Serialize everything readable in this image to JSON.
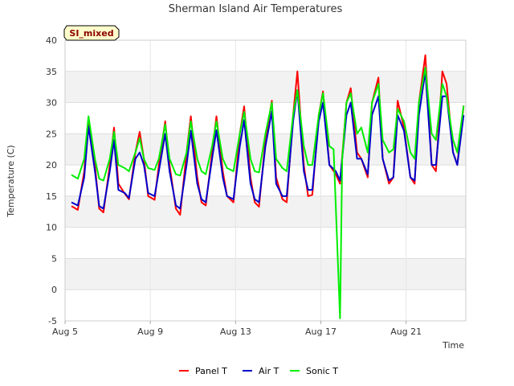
{
  "chart_data": {
    "type": "line",
    "title": "Sherman Island Air Temperatures",
    "xlabel": "Time",
    "ylabel": "Temperature (C)",
    "badge": "SI_mixed",
    "xlim": [
      5,
      23.8
    ],
    "ylim": [
      -5,
      40
    ],
    "y_ticks": [
      -5,
      0,
      5,
      10,
      15,
      20,
      25,
      30,
      35,
      40
    ],
    "x_ticks": [
      {
        "value": 5,
        "label": "Aug 5"
      },
      {
        "value": 9,
        "label": "Aug 9"
      },
      {
        "value": 13,
        "label": "Aug 13"
      },
      {
        "value": 17,
        "label": "Aug 17"
      },
      {
        "value": 21,
        "label": "Aug 21"
      }
    ],
    "grid": true,
    "legend_position": "bottom-center",
    "series": [
      {
        "name": "Panel T",
        "color": "#ff0000",
        "points": [
          [
            5.3,
            13.4
          ],
          [
            5.6,
            12.8
          ],
          [
            5.9,
            19
          ],
          [
            6.1,
            27.6
          ],
          [
            6.4,
            20
          ],
          [
            6.6,
            13
          ],
          [
            6.8,
            12.4
          ],
          [
            7.1,
            20
          ],
          [
            7.3,
            26
          ],
          [
            7.5,
            17
          ],
          [
            7.8,
            15.4
          ],
          [
            8,
            14.5
          ],
          [
            8.3,
            22
          ],
          [
            8.5,
            25.3
          ],
          [
            8.7,
            21
          ],
          [
            8.9,
            15
          ],
          [
            9.2,
            14.4
          ],
          [
            9.4,
            20
          ],
          [
            9.7,
            27
          ],
          [
            9.9,
            20
          ],
          [
            10.2,
            13
          ],
          [
            10.4,
            12
          ],
          [
            10.7,
            22
          ],
          [
            10.9,
            27.8
          ],
          [
            11.2,
            18
          ],
          [
            11.4,
            14
          ],
          [
            11.6,
            13.5
          ],
          [
            11.9,
            22
          ],
          [
            12.1,
            27.8
          ],
          [
            12.4,
            19
          ],
          [
            12.6,
            15
          ],
          [
            12.9,
            14
          ],
          [
            13.2,
            25
          ],
          [
            13.4,
            29.4
          ],
          [
            13.7,
            18
          ],
          [
            13.9,
            14
          ],
          [
            14.1,
            13.3
          ],
          [
            14.4,
            24
          ],
          [
            14.7,
            30.3
          ],
          [
            14.9,
            18
          ],
          [
            15.2,
            14.5
          ],
          [
            15.4,
            14
          ],
          [
            15.7,
            28
          ],
          [
            15.9,
            35
          ],
          [
            16.2,
            20
          ],
          [
            16.4,
            15
          ],
          [
            16.6,
            15.2
          ],
          [
            16.9,
            28
          ],
          [
            17.1,
            31.8
          ],
          [
            17.4,
            20
          ],
          [
            17.7,
            18.5
          ],
          [
            17.9,
            17
          ],
          [
            18.2,
            30
          ],
          [
            18.4,
            32.3
          ],
          [
            18.7,
            22
          ],
          [
            18.9,
            21
          ],
          [
            19.2,
            18
          ],
          [
            19.4,
            30
          ],
          [
            19.7,
            34
          ],
          [
            19.9,
            21
          ],
          [
            20.2,
            17
          ],
          [
            20.4,
            18
          ],
          [
            20.6,
            30.3
          ],
          [
            20.9,
            26
          ],
          [
            21.2,
            18
          ],
          [
            21.4,
            17
          ],
          [
            21.6,
            30
          ],
          [
            21.9,
            37.6
          ],
          [
            22.2,
            20
          ],
          [
            22.4,
            19
          ],
          [
            22.7,
            35
          ],
          [
            22.9,
            33
          ],
          [
            23.2,
            22
          ],
          [
            23.4,
            20
          ],
          [
            23.7,
            29.5
          ]
        ]
      },
      {
        "name": "Air T",
        "color": "#0000cc",
        "points": [
          [
            5.3,
            14
          ],
          [
            5.6,
            13.5
          ],
          [
            5.9,
            18
          ],
          [
            6.1,
            26.2
          ],
          [
            6.4,
            19
          ],
          [
            6.6,
            13.4
          ],
          [
            6.8,
            13
          ],
          [
            7.1,
            19
          ],
          [
            7.3,
            24
          ],
          [
            7.5,
            16
          ],
          [
            7.8,
            15.5
          ],
          [
            8,
            14.7
          ],
          [
            8.3,
            21
          ],
          [
            8.5,
            22
          ],
          [
            8.7,
            20
          ],
          [
            8.9,
            15.5
          ],
          [
            9.2,
            15
          ],
          [
            9.4,
            19
          ],
          [
            9.7,
            25
          ],
          [
            9.9,
            19
          ],
          [
            10.2,
            13.5
          ],
          [
            10.4,
            13
          ],
          [
            10.7,
            20
          ],
          [
            10.9,
            25.5
          ],
          [
            11.2,
            17
          ],
          [
            11.4,
            14.5
          ],
          [
            11.6,
            14
          ],
          [
            11.9,
            21
          ],
          [
            12.1,
            25.6
          ],
          [
            12.4,
            18
          ],
          [
            12.6,
            15
          ],
          [
            12.9,
            14.5
          ],
          [
            13.2,
            23
          ],
          [
            13.4,
            27.2
          ],
          [
            13.7,
            17
          ],
          [
            13.9,
            14.5
          ],
          [
            14.1,
            14
          ],
          [
            14.4,
            23
          ],
          [
            14.7,
            28.6
          ],
          [
            14.9,
            17
          ],
          [
            15.2,
            15
          ],
          [
            15.4,
            15
          ],
          [
            15.7,
            27
          ],
          [
            15.9,
            32
          ],
          [
            16.2,
            19
          ],
          [
            16.4,
            16
          ],
          [
            16.6,
            16
          ],
          [
            16.9,
            27
          ],
          [
            17.1,
            30
          ],
          [
            17.4,
            20
          ],
          [
            17.7,
            19
          ],
          [
            17.9,
            17.5
          ],
          [
            18.2,
            28
          ],
          [
            18.4,
            30
          ],
          [
            18.7,
            21
          ],
          [
            18.9,
            21
          ],
          [
            19.2,
            18.5
          ],
          [
            19.4,
            28
          ],
          [
            19.7,
            31
          ],
          [
            19.9,
            21
          ],
          [
            20.2,
            17.5
          ],
          [
            20.4,
            18
          ],
          [
            20.6,
            28
          ],
          [
            20.9,
            25.5
          ],
          [
            21.2,
            18
          ],
          [
            21.4,
            17.5
          ],
          [
            21.6,
            28
          ],
          [
            21.9,
            35
          ],
          [
            22.2,
            20
          ],
          [
            22.4,
            20
          ],
          [
            22.7,
            31
          ],
          [
            22.9,
            31
          ],
          [
            23.2,
            22
          ],
          [
            23.4,
            20
          ],
          [
            23.7,
            28
          ]
        ]
      },
      {
        "name": "Sonic T",
        "color": "#00ee00",
        "points": [
          [
            5.3,
            18.4
          ],
          [
            5.6,
            17.8
          ],
          [
            5.9,
            21
          ],
          [
            6.1,
            27.8
          ],
          [
            6.4,
            21
          ],
          [
            6.6,
            17.8
          ],
          [
            6.8,
            17.5
          ],
          [
            7.1,
            21
          ],
          [
            7.3,
            25.3
          ],
          [
            7.5,
            20
          ],
          [
            7.8,
            19.5
          ],
          [
            8,
            19
          ],
          [
            8.3,
            22
          ],
          [
            8.5,
            24.3
          ],
          [
            8.7,
            21
          ],
          [
            8.9,
            19.5
          ],
          [
            9.2,
            19.2
          ],
          [
            9.4,
            21
          ],
          [
            9.7,
            26.5
          ],
          [
            9.9,
            21
          ],
          [
            10.2,
            18.5
          ],
          [
            10.4,
            18.3
          ],
          [
            10.7,
            22
          ],
          [
            10.9,
            27
          ],
          [
            11.2,
            21
          ],
          [
            11.4,
            19
          ],
          [
            11.6,
            18.5
          ],
          [
            11.9,
            23
          ],
          [
            12.1,
            27
          ],
          [
            12.4,
            21
          ],
          [
            12.6,
            19.5
          ],
          [
            12.9,
            19
          ],
          [
            13.2,
            25
          ],
          [
            13.4,
            28.5
          ],
          [
            13.7,
            21
          ],
          [
            13.9,
            19
          ],
          [
            14.1,
            18.8
          ],
          [
            14.4,
            25
          ],
          [
            14.7,
            30
          ],
          [
            14.9,
            21
          ],
          [
            15.2,
            19.5
          ],
          [
            15.4,
            19
          ],
          [
            15.7,
            28
          ],
          [
            15.9,
            32
          ],
          [
            16.2,
            23
          ],
          [
            16.4,
            20
          ],
          [
            16.6,
            20
          ],
          [
            16.9,
            28
          ],
          [
            17.1,
            31.5
          ],
          [
            17.4,
            23
          ],
          [
            17.6,
            22.5
          ],
          [
            17.9,
            -4.6
          ],
          [
            18,
            21
          ],
          [
            18.2,
            30
          ],
          [
            18.4,
            31.5
          ],
          [
            18.7,
            25
          ],
          [
            18.9,
            26
          ],
          [
            19.2,
            22
          ],
          [
            19.4,
            30
          ],
          [
            19.7,
            33
          ],
          [
            19.9,
            24
          ],
          [
            20.2,
            22
          ],
          [
            20.4,
            22.5
          ],
          [
            20.6,
            29
          ],
          [
            20.9,
            27
          ],
          [
            21.2,
            22
          ],
          [
            21.4,
            21
          ],
          [
            21.6,
            30
          ],
          [
            21.9,
            35.6
          ],
          [
            22.2,
            25
          ],
          [
            22.4,
            24
          ],
          [
            22.7,
            33
          ],
          [
            22.9,
            31
          ],
          [
            23.2,
            24
          ],
          [
            23.4,
            22
          ],
          [
            23.7,
            29.5
          ]
        ]
      }
    ]
  }
}
